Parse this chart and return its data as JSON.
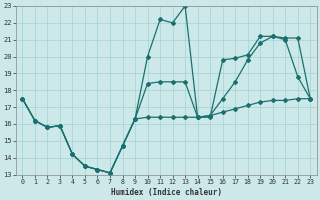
{
  "xlabel": "Humidex (Indice chaleur)",
  "bg_color": "#cce8e8",
  "grid_color": "#99cccc",
  "line_color": "#1a7070",
  "xlim": [
    -0.5,
    23.5
  ],
  "ylim": [
    13,
    23
  ],
  "xticks": [
    0,
    1,
    2,
    3,
    4,
    5,
    6,
    7,
    8,
    9,
    10,
    11,
    12,
    13,
    14,
    15,
    16,
    17,
    18,
    19,
    20,
    21,
    22,
    23
  ],
  "yticks": [
    13,
    14,
    15,
    16,
    17,
    18,
    19,
    20,
    21,
    22,
    23
  ],
  "line1_x": [
    0,
    1,
    2,
    3,
    4,
    5,
    6,
    7,
    8,
    9,
    10,
    11,
    12,
    13,
    14,
    15,
    16,
    17,
    18,
    19,
    20,
    21,
    22,
    23
  ],
  "line1_y": [
    17.5,
    16.2,
    15.8,
    15.9,
    14.2,
    13.5,
    13.3,
    13.1,
    14.7,
    16.3,
    20.0,
    22.2,
    22.0,
    23.0,
    16.4,
    16.4,
    19.8,
    19.9,
    20.1,
    21.2,
    21.2,
    21.0,
    18.8,
    17.5
  ],
  "line2_x": [
    0,
    1,
    2,
    3,
    4,
    5,
    6,
    7,
    8,
    9,
    10,
    11,
    12,
    13,
    14,
    15,
    16,
    17,
    18,
    19,
    20,
    21,
    22,
    23
  ],
  "line2_y": [
    17.5,
    16.2,
    15.8,
    15.9,
    14.2,
    13.5,
    13.3,
    13.1,
    14.7,
    16.3,
    16.4,
    16.4,
    16.4,
    16.4,
    16.4,
    16.5,
    16.7,
    16.9,
    17.1,
    17.3,
    17.4,
    17.4,
    17.5,
    17.5
  ],
  "line3_x": [
    0,
    1,
    2,
    3,
    4,
    5,
    6,
    7,
    8,
    9,
    10,
    11,
    12,
    13,
    14,
    15,
    16,
    17,
    18,
    19,
    20,
    21,
    22,
    23
  ],
  "line3_y": [
    17.5,
    16.2,
    15.8,
    15.9,
    14.2,
    13.5,
    13.3,
    13.1,
    14.7,
    16.3,
    18.4,
    18.5,
    18.5,
    18.5,
    16.4,
    16.5,
    17.5,
    18.5,
    19.8,
    20.8,
    21.2,
    21.1,
    21.1,
    17.5
  ],
  "xlabel_fontsize": 5.5,
  "tick_fontsize": 4.8,
  "linewidth": 0.9,
  "markersize": 2.0
}
